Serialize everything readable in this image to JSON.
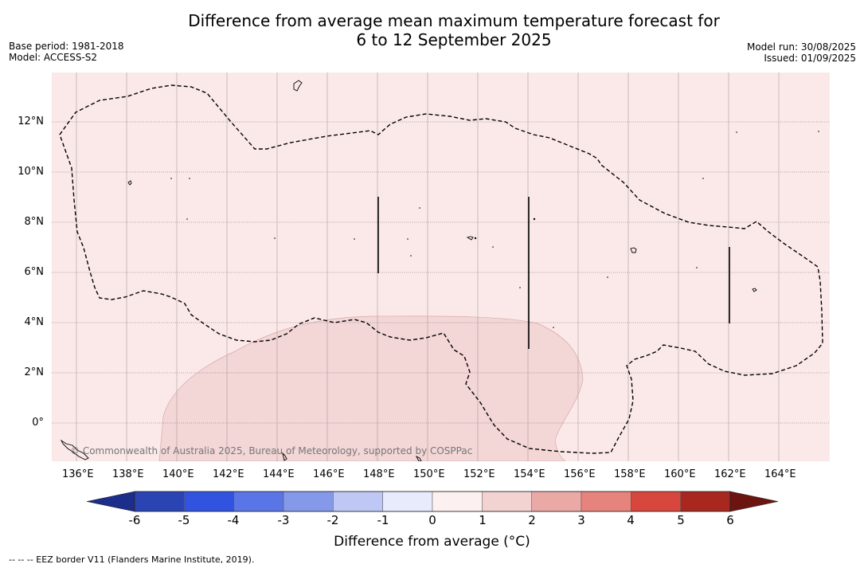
{
  "title_line1": "Difference from average mean maximum temperature forecast for",
  "title_line2": "6 to 12 September 2025",
  "base_period": "Base period: 1981-2018",
  "model": "Model: ACCESS-S2",
  "model_run": "Model run: 30/08/2025",
  "issued": "Issued: 01/09/2025",
  "copyright": "© Commonwealth of Australia 2025, Bureau of Meteorology, supported by COSPPac",
  "x_ticks": [
    "136°E",
    "138°E",
    "140°E",
    "142°E",
    "144°E",
    "146°E",
    "148°E",
    "150°E",
    "152°E",
    "154°E",
    "156°E",
    "158°E",
    "160°E",
    "162°E",
    "164°E"
  ],
  "y_ticks": [
    "12°N",
    "10°N",
    "8°N",
    "6°N",
    "4°N",
    "2°N",
    "0°"
  ],
  "colorbar": {
    "title": "Difference from average (°C)",
    "ticks": [
      "-6",
      "-5",
      "-4",
      "-3",
      "-2",
      "-1",
      "0",
      "1",
      "2",
      "3",
      "4",
      "5",
      "6"
    ],
    "colors": [
      "#1c2d8c",
      "#2a44b4",
      "#3253e0",
      "#5a76e6",
      "#8499ea",
      "#bfc7f4",
      "#e8ebfb",
      "#fdf0f0",
      "#f3d2d2",
      "#eba9a6",
      "#e6837c",
      "#d8473d",
      "#a8271f",
      "#6c1510"
    ]
  },
  "footnote": "--  --  -- EEZ border V11 (Flanders Marine Institute, 2019)."
}
